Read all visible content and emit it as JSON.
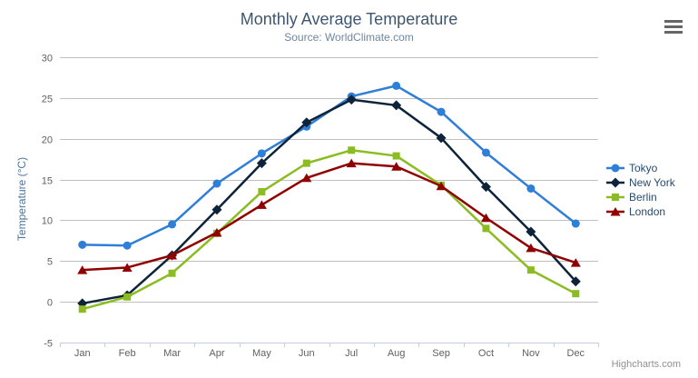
{
  "header": {
    "title": "Monthly Average Temperature",
    "subtitle": "Source: WorldClimate.com"
  },
  "y_axis": {
    "title": "Temperature (°C)"
  },
  "credits": {
    "label": "Highcharts.com"
  },
  "colors": {
    "title": "#3E576F",
    "subtitle": "#6D869F",
    "y_axis_title": "#4d759e",
    "axis_labels": "#606060",
    "legend_text": "#274b6d",
    "gridline": "#C0C0C0",
    "axis_line": "#C0D0E0",
    "credits_text": "#909090",
    "menu_icon": "#666666"
  },
  "chart_data": {
    "type": "line",
    "title": "Monthly Average Temperature",
    "subtitle": "Source: WorldClimate.com",
    "xlabel": "",
    "ylabel": "Temperature (°C)",
    "ylim": [
      -5,
      30
    ],
    "y_tick_step": 5,
    "grid": true,
    "legend_position": "right",
    "categories": [
      "Jan",
      "Feb",
      "Mar",
      "Apr",
      "May",
      "Jun",
      "Jul",
      "Aug",
      "Sep",
      "Oct",
      "Nov",
      "Dec"
    ],
    "series": [
      {
        "name": "Tokyo",
        "color": "#2f7ed8",
        "marker": "circle",
        "values": [
          7.0,
          6.9,
          9.5,
          14.5,
          18.2,
          21.5,
          25.2,
          26.5,
          23.3,
          18.3,
          13.9,
          9.6
        ]
      },
      {
        "name": "New York",
        "color": "#0d233a",
        "marker": "diamond",
        "values": [
          -0.2,
          0.8,
          5.7,
          11.3,
          17.0,
          22.0,
          24.8,
          24.1,
          20.1,
          14.1,
          8.6,
          2.5
        ]
      },
      {
        "name": "Berlin",
        "color": "#8bbc21",
        "marker": "square",
        "values": [
          -0.9,
          0.6,
          3.5,
          8.4,
          13.5,
          17.0,
          18.6,
          17.9,
          14.3,
          9.0,
          3.9,
          1.0
        ]
      },
      {
        "name": "London",
        "color": "#910000",
        "marker": "triangle",
        "values": [
          3.9,
          4.2,
          5.7,
          8.5,
          11.9,
          15.2,
          17.0,
          16.6,
          14.2,
          10.3,
          6.6,
          4.8
        ]
      }
    ]
  }
}
